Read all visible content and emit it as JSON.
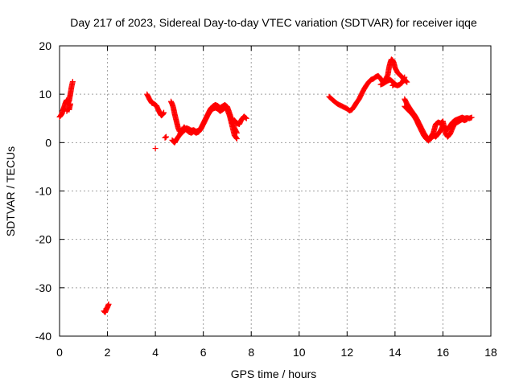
{
  "chart_data": {
    "type": "scatter",
    "title": "Day 217 of 2023, Sidereal Day-to-day VTEC variation (SDTVAR) for receiver iqqe",
    "xlabel": "GPS time / hours",
    "ylabel": "SDTVAR / TECUs",
    "xlim": [
      0,
      18
    ],
    "ylim": [
      -40,
      20
    ],
    "xticks": [
      "0",
      "2",
      "4",
      "6",
      "8",
      "10",
      "12",
      "14",
      "16",
      "18"
    ],
    "yticks": [
      "20",
      "10",
      "0",
      "-10",
      "-20",
      "-30",
      "-40"
    ],
    "grid": true,
    "marker": "plus",
    "color": "#ff0000",
    "series": [
      {
        "name": "SDTVAR",
        "segments": [
          [
            [
              0.0,
              5.3
            ],
            [
              0.05,
              5.6
            ],
            [
              0.1,
              6.0
            ],
            [
              0.15,
              6.8
            ],
            [
              0.2,
              7.5
            ],
            [
              0.25,
              8.3
            ],
            [
              0.3,
              8.8
            ],
            [
              0.35,
              8.0
            ],
            [
              0.4,
              8.6
            ],
            [
              0.45,
              10.0
            ],
            [
              0.5,
              11.5
            ],
            [
              0.55,
              12.6
            ]
          ],
          [
            [
              0.3,
              6.5
            ],
            [
              0.35,
              7.0
            ],
            [
              0.4,
              6.8
            ],
            [
              0.45,
              8.0
            ]
          ],
          [
            [
              1.85,
              -34.8
            ],
            [
              1.9,
              -35.1
            ],
            [
              1.95,
              -34.5
            ],
            [
              2.0,
              -34.0
            ],
            [
              2.05,
              -33.4
            ]
          ],
          [
            [
              3.65,
              10.0
            ],
            [
              3.75,
              9.0
            ],
            [
              3.85,
              8.2
            ],
            [
              3.95,
              8.0
            ],
            [
              4.05,
              7.6
            ],
            [
              4.1,
              7.0
            ],
            [
              4.15,
              6.5
            ],
            [
              4.2,
              6.0
            ],
            [
              4.25,
              5.6
            ],
            [
              4.3,
              5.8
            ],
            [
              4.35,
              6.2
            ]
          ],
          [
            [
              4.0,
              -1.2
            ]
          ],
          [
            [
              4.4,
              1.0
            ],
            [
              4.45,
              1.2
            ]
          ],
          [
            [
              4.65,
              8.5
            ],
            [
              4.7,
              8.0
            ],
            [
              4.75,
              7.2
            ],
            [
              4.8,
              6.0
            ],
            [
              4.85,
              5.0
            ],
            [
              4.9,
              4.0
            ],
            [
              4.95,
              3.0
            ],
            [
              5.0,
              2.4
            ],
            [
              5.1,
              2.0
            ],
            [
              5.2,
              2.5
            ],
            [
              5.3,
              3.0
            ],
            [
              5.4,
              2.8
            ],
            [
              5.5,
              2.5
            ],
            [
              5.6,
              2.6
            ],
            [
              5.7,
              2.3
            ],
            [
              5.8,
              2.5
            ],
            [
              5.9,
              3.0
            ],
            [
              6.0,
              4.0
            ],
            [
              6.1,
              5.0
            ],
            [
              6.2,
              6.0
            ],
            [
              6.3,
              7.0
            ],
            [
              6.4,
              7.5
            ],
            [
              6.5,
              7.8
            ],
            [
              6.6,
              7.6
            ],
            [
              6.7,
              7.2
            ],
            [
              6.8,
              7.5
            ],
            [
              6.9,
              7.8
            ],
            [
              7.0,
              7.4
            ],
            [
              7.1,
              6.0
            ],
            [
              7.2,
              4.5
            ],
            [
              7.3,
              3.0
            ],
            [
              7.4,
              2.0
            ]
          ],
          [
            [
              4.7,
              0.5
            ],
            [
              4.8,
              0.0
            ],
            [
              4.9,
              0.8
            ],
            [
              5.0,
              1.5
            ],
            [
              5.1,
              2.5
            ],
            [
              5.2,
              3.2
            ],
            [
              5.3,
              2.6
            ],
            [
              5.4,
              2.2
            ],
            [
              5.5,
              2.0
            ],
            [
              5.6,
              2.3
            ],
            [
              5.7,
              2.0
            ],
            [
              5.8,
              2.2
            ],
            [
              5.9,
              2.8
            ],
            [
              6.0,
              3.8
            ],
            [
              6.1,
              4.8
            ],
            [
              6.2,
              5.8
            ],
            [
              6.3,
              6.6
            ],
            [
              6.4,
              7.0
            ],
            [
              6.5,
              7.2
            ],
            [
              6.6,
              7.0
            ],
            [
              6.7,
              6.5
            ],
            [
              6.8,
              6.8
            ],
            [
              6.9,
              7.2
            ],
            [
              7.0,
              6.8
            ],
            [
              7.1,
              5.5
            ],
            [
              7.2,
              3.5
            ],
            [
              7.3,
              1.5
            ],
            [
              7.4,
              0.8
            ]
          ],
          [
            [
              7.2,
              4.0
            ],
            [
              7.3,
              4.6
            ],
            [
              7.4,
              4.0
            ],
            [
              7.5,
              3.8
            ],
            [
              7.6,
              4.8
            ],
            [
              7.7,
              5.4
            ],
            [
              7.8,
              5.0
            ]
          ],
          [
            [
              11.25,
              9.5
            ],
            [
              11.4,
              8.8
            ],
            [
              11.6,
              8.0
            ],
            [
              11.8,
              7.5
            ],
            [
              12.0,
              7.0
            ],
            [
              12.1,
              6.6
            ],
            [
              12.2,
              6.8
            ],
            [
              12.3,
              7.5
            ],
            [
              12.4,
              8.3
            ],
            [
              12.5,
              9.0
            ],
            [
              12.6,
              10.0
            ],
            [
              12.7,
              11.0
            ],
            [
              12.8,
              11.8
            ],
            [
              12.9,
              12.5
            ],
            [
              13.0,
              13.0
            ],
            [
              13.1,
              13.2
            ],
            [
              13.2,
              13.6
            ],
            [
              13.3,
              13.8
            ],
            [
              13.4,
              13.2
            ],
            [
              13.5,
              12.5
            ],
            [
              13.6,
              13.0
            ],
            [
              13.7,
              14.0
            ],
            [
              13.75,
              15.5
            ],
            [
              13.8,
              16.5
            ],
            [
              13.85,
              17.2
            ],
            [
              13.9,
              17.0
            ],
            [
              13.95,
              16.5
            ],
            [
              14.0,
              15.5
            ],
            [
              14.1,
              14.5
            ],
            [
              14.2,
              14.0
            ],
            [
              14.3,
              13.5
            ],
            [
              14.4,
              13.0
            ],
            [
              14.5,
              12.5
            ]
          ],
          [
            [
              13.4,
              12.0
            ],
            [
              13.5,
              12.2
            ],
            [
              13.6,
              12.5
            ],
            [
              13.7,
              12.8
            ],
            [
              13.8,
              13.0
            ],
            [
              13.9,
              12.6
            ],
            [
              14.0,
              12.0
            ],
            [
              14.1,
              11.8
            ],
            [
              14.2,
              12.0
            ],
            [
              14.3,
              12.4
            ],
            [
              14.4,
              13.5
            ]
          ],
          [
            [
              14.4,
              9.0
            ],
            [
              14.5,
              8.0
            ],
            [
              14.6,
              7.2
            ],
            [
              14.7,
              6.5
            ],
            [
              14.8,
              5.8
            ],
            [
              14.9,
              5.0
            ],
            [
              15.0,
              4.0
            ],
            [
              15.1,
              3.0
            ],
            [
              15.2,
              2.0
            ],
            [
              15.3,
              1.2
            ],
            [
              15.4,
              0.6
            ],
            [
              15.5,
              0.8
            ],
            [
              15.6,
              1.5
            ],
            [
              15.7,
              1.2
            ],
            [
              15.8,
              1.8
            ],
            [
              15.9,
              2.5
            ],
            [
              16.0,
              3.5
            ],
            [
              16.1,
              3.0
            ],
            [
              16.2,
              2.8
            ],
            [
              16.3,
              3.5
            ],
            [
              16.4,
              4.2
            ],
            [
              16.5,
              4.6
            ],
            [
              16.6,
              4.8
            ],
            [
              16.7,
              5.0
            ],
            [
              16.8,
              5.2
            ],
            [
              16.9,
              5.0
            ],
            [
              17.0,
              5.1
            ],
            [
              17.1,
              5.0
            ],
            [
              17.2,
              5.2
            ]
          ],
          [
            [
              14.4,
              7.5
            ],
            [
              14.5,
              7.0
            ],
            [
              14.6,
              6.5
            ],
            [
              14.7,
              6.0
            ],
            [
              14.8,
              5.4
            ],
            [
              14.9,
              4.6
            ],
            [
              15.0,
              3.5
            ],
            [
              15.1,
              2.5
            ],
            [
              15.2,
              1.5
            ],
            [
              15.3,
              0.8
            ],
            [
              15.4,
              0.4
            ],
            [
              15.5,
              1.2
            ],
            [
              15.6,
              2.0
            ],
            [
              15.7,
              3.8
            ],
            [
              15.8,
              4.2
            ],
            [
              15.9,
              4.0
            ],
            [
              16.0,
              4.4
            ],
            [
              16.1,
              2.0
            ],
            [
              16.2,
              1.2
            ],
            [
              16.3,
              1.8
            ],
            [
              16.4,
              3.0
            ],
            [
              16.5,
              4.0
            ],
            [
              16.6,
              4.2
            ],
            [
              16.7,
              4.5
            ],
            [
              16.8,
              4.8
            ],
            [
              16.9,
              4.6
            ],
            [
              17.0,
              4.8
            ]
          ],
          [
            [
              13.9,
              11.8
            ],
            [
              14.0,
              12.2
            ]
          ]
        ]
      }
    ]
  }
}
